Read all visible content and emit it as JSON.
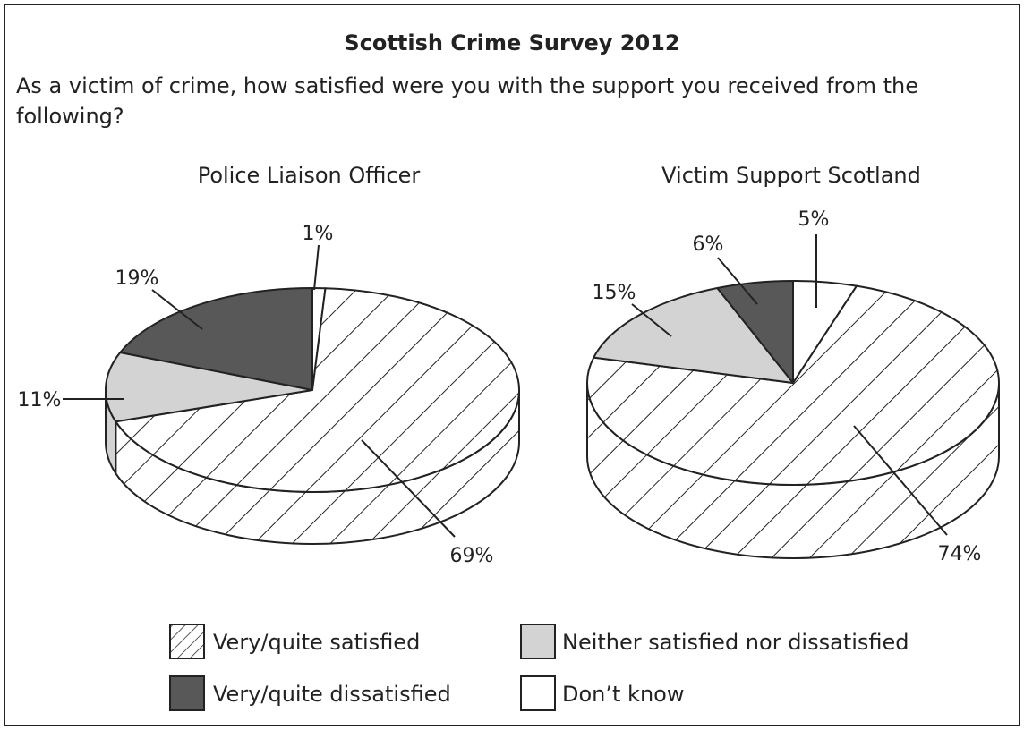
{
  "title": "Scottish Crime Survey 2012",
  "question_line1": "As a victim of crime, how satisfied were you with the support you received from the",
  "question_line2": "following?",
  "colors": {
    "very_quite_satisfied": "hatched-white",
    "neither": "#d3d3d3",
    "very_quite_dissatisfied": "#585858",
    "dont_know": "#ffffff"
  },
  "legend": [
    {
      "key": "satisfied",
      "label": "Very/quite satisfied"
    },
    {
      "key": "neither",
      "label": "Neither satisfied nor dissatisfied"
    },
    {
      "key": "dissatisfied",
      "label": "Very/quite dissatisfied"
    },
    {
      "key": "dontknow",
      "label": "Don’t know"
    }
  ],
  "chart_data": [
    {
      "type": "pie",
      "title": "Police Liaison Officer",
      "slices": [
        {
          "category": "Very/quite satisfied",
          "value": 69,
          "label": "69%"
        },
        {
          "category": "Neither satisfied nor dissatisfied",
          "value": 11,
          "label": "11%"
        },
        {
          "category": "Very/quite dissatisfied",
          "value": 19,
          "label": "19%"
        },
        {
          "category": "Don’t know",
          "value": 1,
          "label": "1%"
        }
      ]
    },
    {
      "type": "pie",
      "title": "Victim Support Scotland",
      "slices": [
        {
          "category": "Very/quite satisfied",
          "value": 74,
          "label": "74%"
        },
        {
          "category": "Neither satisfied nor dissatisfied",
          "value": 15,
          "label": "15%"
        },
        {
          "category": "Very/quite dissatisfied",
          "value": 6,
          "label": "6%"
        },
        {
          "category": "Don’t know",
          "value": 5,
          "label": "5%"
        }
      ]
    }
  ]
}
